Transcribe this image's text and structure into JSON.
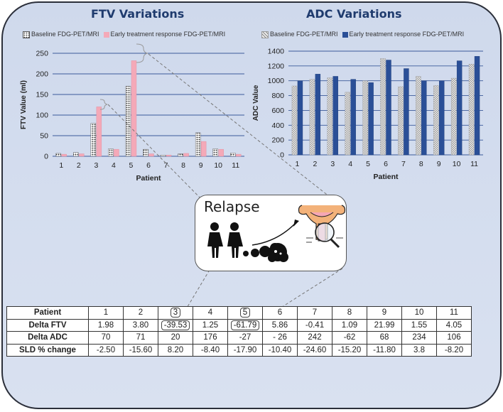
{
  "chart_data": [
    {
      "type": "bar",
      "title": "FTV Variations",
      "xlabel": "Patient",
      "ylabel": "FTV Value (ml)",
      "ylim": [
        0,
        250
      ],
      "yticks": [
        0,
        50,
        100,
        150,
        200,
        250
      ],
      "categories": [
        "1",
        "2",
        "3",
        "4",
        "5",
        "6",
        "7",
        "8",
        "9",
        "10",
        "11"
      ],
      "series": [
        {
          "name": "Baseline FDG-PET/MRI",
          "values": [
            7,
            9,
            80,
            18,
            170,
            17,
            3,
            6,
            57,
            18,
            8
          ]
        },
        {
          "name": "Early treatment response FDG-PET/MRI",
          "values": [
            5,
            6,
            120,
            17,
            232,
            6,
            3,
            7,
            36,
            17,
            5
          ]
        }
      ],
      "colors": [
        "#ffffff",
        "#f4a9b8"
      ],
      "grid": true,
      "legend": "top"
    },
    {
      "type": "bar",
      "title": "ADC Variations",
      "xlabel": "Patient",
      "ylabel": "ADC Value",
      "ylim": [
        0,
        1400
      ],
      "yticks": [
        0,
        200,
        400,
        600,
        800,
        1000,
        1200,
        1400
      ],
      "categories": [
        "1",
        "2",
        "3",
        "4",
        "5",
        "6",
        "7",
        "8",
        "9",
        "10",
        "11"
      ],
      "series": [
        {
          "name": "Baseline FDG-PET/MRI",
          "values": [
            930,
            1020,
            1040,
            845,
            1000,
            1300,
            920,
            1060,
            935,
            1035,
            1225
          ]
        },
        {
          "name": "Early treatment response FDG-PET/MRI",
          "values": [
            1000,
            1090,
            1060,
            1020,
            975,
            1280,
            1165,
            1000,
            1000,
            1270,
            1330
          ]
        }
      ],
      "colors": [
        "#cfcfcf",
        "#2a4f97"
      ],
      "grid": true,
      "legend": "top"
    }
  ],
  "relapse": {
    "label": "Relapse"
  },
  "table": {
    "header": "Patient",
    "patients": [
      "1",
      "2",
      "3",
      "4",
      "5",
      "6",
      "7",
      "8",
      "9",
      "10",
      "11"
    ],
    "highlighted": [
      "3",
      "5"
    ],
    "rows": [
      {
        "label": "Delta FTV",
        "values": [
          "1.98",
          "3.80",
          "-39.53",
          "1.25",
          "-61.79",
          "5.86",
          "-0.41",
          "1.09",
          "21.99",
          "1.55",
          "4.05"
        ]
      },
      {
        "label": "Delta ADC",
        "values": [
          "70",
          "71",
          "20",
          "176",
          "-27",
          "- 26",
          "242",
          "-62",
          "68",
          "234",
          "106"
        ]
      },
      {
        "label": "SLD % change",
        "values": [
          "-2.50",
          "-15.60",
          "8.20",
          "-8.40",
          "-17.90",
          "-10.40",
          "-24.60",
          "-15.20",
          "-11.80",
          "3.8",
          "-8.20"
        ]
      }
    ]
  }
}
